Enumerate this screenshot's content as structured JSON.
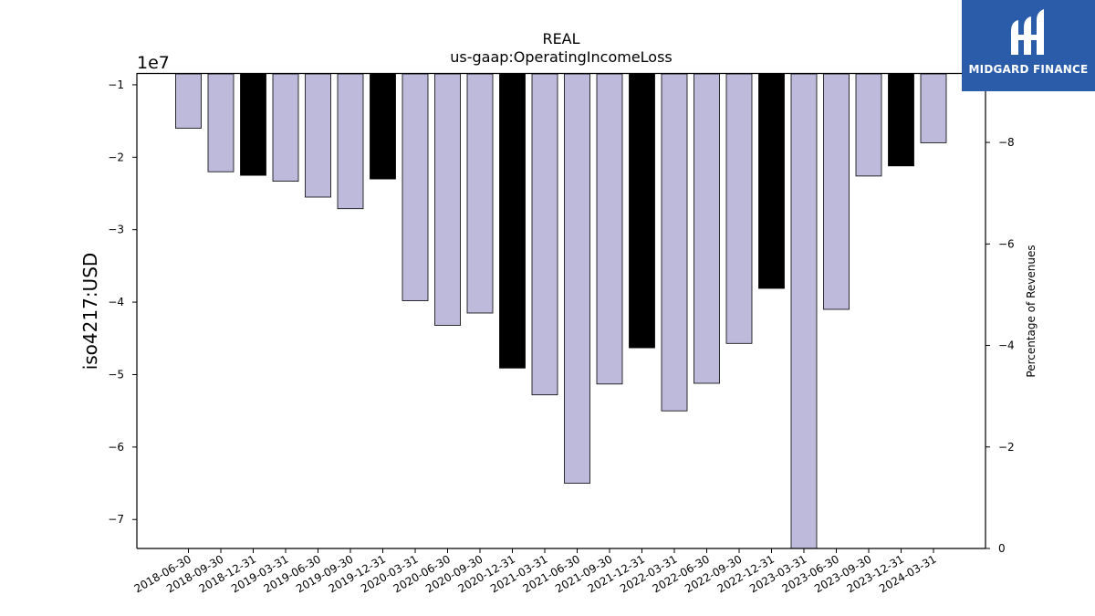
{
  "chart_data": {
    "type": "bar",
    "title": "REAL",
    "subtitle": "us-gaap:OperatingIncomeLoss",
    "ylabel": "iso4217:USD",
    "y2label": "Percentage of Revenues",
    "yscale_label": "1e7",
    "ylim": [
      -74000000,
      -8500000
    ],
    "y2lim": [
      0,
      -9.35
    ],
    "yticks": [
      -1,
      -2,
      -3,
      -4,
      -5,
      -6,
      -7
    ],
    "y2ticks": [
      -8,
      -6,
      -4,
      -2,
      0
    ],
    "grid": false,
    "categories": [
      "2018-06-30",
      "2018-09-30",
      "2018-12-31",
      "2019-03-31",
      "2019-06-30",
      "2019-09-30",
      "2019-12-31",
      "2020-03-31",
      "2020-06-30",
      "2020-09-30",
      "2020-12-31",
      "2021-03-31",
      "2021-06-30",
      "2021-09-30",
      "2021-12-31",
      "2022-03-31",
      "2022-06-30",
      "2022-09-30",
      "2022-12-31",
      "2023-03-31",
      "2023-06-30",
      "2023-09-30",
      "2023-12-31",
      "2024-03-31"
    ],
    "values": [
      -16000000,
      -22000000,
      -22500000,
      -23300000,
      -25500000,
      -27100000,
      -23000000,
      -39800000,
      -43200000,
      -41500000,
      -49100000,
      -52800000,
      -65000000,
      -51300000,
      -46300000,
      -55000000,
      -51200000,
      -45700000,
      -38100000,
      -74000000,
      -41000000,
      -22600000,
      -21200000,
      -18000000
    ],
    "highlight": [
      false,
      false,
      true,
      false,
      false,
      false,
      true,
      false,
      false,
      false,
      true,
      false,
      false,
      false,
      true,
      false,
      false,
      false,
      true,
      false,
      false,
      false,
      true,
      false
    ],
    "colors": {
      "bar": "#bdbadb",
      "highlight": "#000000",
      "edge": "#000000"
    }
  },
  "logo": {
    "text": "MIDGARD FINANCE",
    "background": "#2a5caa",
    "icon": "midgard-logo-icon"
  }
}
